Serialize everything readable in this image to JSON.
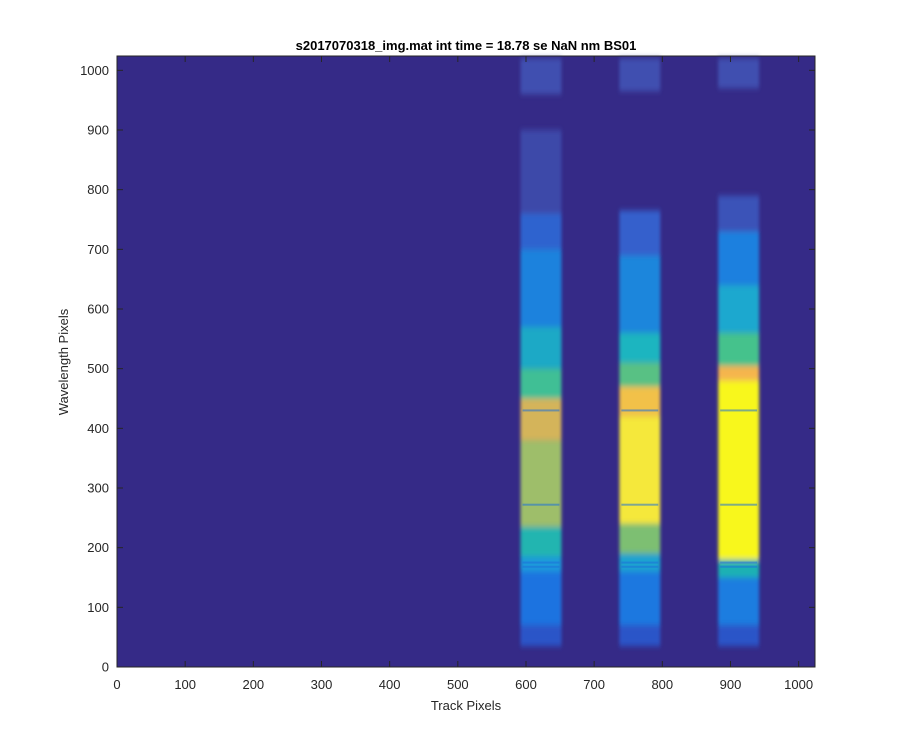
{
  "chart_data": {
    "type": "heatmap",
    "title": "s2017070318_img.mat int time = 18.78 se  NaN nm BS01",
    "xlabel": "Track Pixels",
    "ylabel": "Wavelength Pixels",
    "xlim": [
      0,
      1024
    ],
    "ylim": [
      0,
      1024
    ],
    "xticks": [
      "0",
      "100",
      "200",
      "300",
      "400",
      "500",
      "600",
      "700",
      "800",
      "900",
      "1000"
    ],
    "yticks": [
      "0",
      "100",
      "200",
      "300",
      "400",
      "500",
      "600",
      "700",
      "800",
      "900",
      "1000"
    ],
    "colormap": "parula",
    "background_color": "#352A87",
    "grid": false,
    "bands": [
      {
        "x_range": [
          592,
          652
        ],
        "y_range": [
          35,
          1020
        ],
        "segments": [
          {
            "y0": 35,
            "y1": 70,
            "color": "#2B55C8"
          },
          {
            "y0": 70,
            "y1": 160,
            "color": "#1E73E0"
          },
          {
            "y0": 160,
            "y1": 185,
            "color": "#1A9ADB"
          },
          {
            "y0": 185,
            "y1": 235,
            "color": "#23B5B0"
          },
          {
            "y0": 235,
            "y1": 380,
            "color": "#9EBE6A"
          },
          {
            "y0": 380,
            "y1": 450,
            "color": "#D4B45A"
          },
          {
            "y0": 450,
            "y1": 500,
            "color": "#3FBF95"
          },
          {
            "y0": 500,
            "y1": 570,
            "color": "#1AA9C6"
          },
          {
            "y0": 570,
            "y1": 700,
            "color": "#1A82DD"
          },
          {
            "y0": 700,
            "y1": 760,
            "color": "#2F64CF"
          },
          {
            "y0": 760,
            "y1": 900,
            "color": "#3D48A9"
          },
          {
            "y0": 960,
            "y1": 1020,
            "color": "#4150B0"
          }
        ]
      },
      {
        "x_range": [
          737,
          797
        ],
        "y_range": [
          35,
          1020
        ],
        "segments": [
          {
            "y0": 35,
            "y1": 70,
            "color": "#2B55C8"
          },
          {
            "y0": 70,
            "y1": 160,
            "color": "#1E78E0"
          },
          {
            "y0": 160,
            "y1": 190,
            "color": "#1AA3D0"
          },
          {
            "y0": 190,
            "y1": 240,
            "color": "#7DBF72"
          },
          {
            "y0": 240,
            "y1": 420,
            "color": "#F5E83A"
          },
          {
            "y0": 420,
            "y1": 470,
            "color": "#F2C14A"
          },
          {
            "y0": 470,
            "y1": 510,
            "color": "#58C184"
          },
          {
            "y0": 510,
            "y1": 560,
            "color": "#1AB5C0"
          },
          {
            "y0": 560,
            "y1": 690,
            "color": "#1A86DC"
          },
          {
            "y0": 690,
            "y1": 765,
            "color": "#3560CC"
          },
          {
            "y0": 965,
            "y1": 1020,
            "color": "#4150B0"
          }
        ]
      },
      {
        "x_range": [
          882,
          942
        ],
        "y_range": [
          35,
          1020
        ],
        "segments": [
          {
            "y0": 35,
            "y1": 70,
            "color": "#2B55C8"
          },
          {
            "y0": 70,
            "y1": 150,
            "color": "#1E7DE0"
          },
          {
            "y0": 150,
            "y1": 180,
            "color": "#1FB1B3"
          },
          {
            "y0": 180,
            "y1": 480,
            "color": "#F8F71C"
          },
          {
            "y0": 480,
            "y1": 505,
            "color": "#F5B54E"
          },
          {
            "y0": 505,
            "y1": 560,
            "color": "#44C28C"
          },
          {
            "y0": 560,
            "y1": 640,
            "color": "#1AA8CF"
          },
          {
            "y0": 640,
            "y1": 730,
            "color": "#1A80DF"
          },
          {
            "y0": 730,
            "y1": 790,
            "color": "#3A52B8"
          },
          {
            "y0": 970,
            "y1": 1020,
            "color": "#4150B0"
          }
        ]
      }
    ]
  }
}
